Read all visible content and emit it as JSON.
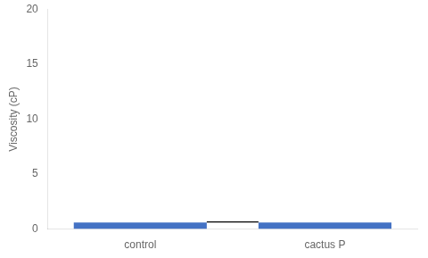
{
  "chart_data": {
    "type": "bar",
    "categories": [
      "control",
      "cactus P"
    ],
    "values": [
      0.6,
      0.6
    ],
    "color": "#4472C4",
    "ylabel": "Viscosity (cP)",
    "ylim": [
      0,
      20
    ],
    "yticks": [
      0,
      5,
      10,
      15,
      20
    ],
    "line_y": 0.65,
    "grid": false,
    "legend": false
  }
}
